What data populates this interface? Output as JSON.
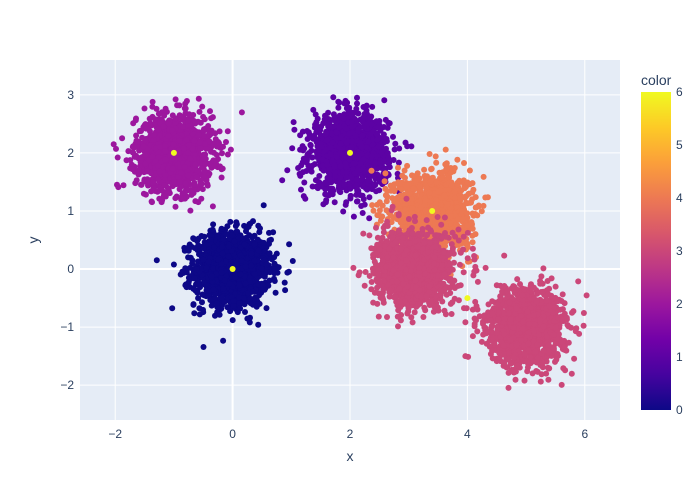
{
  "chart_data": {
    "type": "scatter",
    "xlabel": "x",
    "ylabel": "y",
    "xlim": [
      -2.6,
      6.6
    ],
    "ylim": [
      -2.6,
      3.6
    ],
    "x_ticks": [
      -2,
      0,
      2,
      4,
      6
    ],
    "y_ticks": [
      -2,
      -1,
      0,
      1,
      2,
      3
    ],
    "grid": true,
    "plot_background": "#e5ecf6",
    "colorbar": {
      "title": "color",
      "min": 0,
      "max": 6,
      "ticks": [
        0,
        1,
        2,
        3,
        4,
        5,
        6
      ],
      "colorscale": [
        "#0d0887",
        "#46039f",
        "#7201a8",
        "#9c179e",
        "#bd3786",
        "#d8576b",
        "#ed7953",
        "#fb9f3a",
        "#fdca26",
        "#f0f921"
      ]
    },
    "clusters": [
      {
        "center": [
          0,
          0
        ],
        "spread": 0.32,
        "color_value": 0
      },
      {
        "center": [
          -1,
          2
        ],
        "spread": 0.32,
        "color_value": 2
      },
      {
        "center": [
          2,
          2
        ],
        "spread": 0.32,
        "color_value": 1
      },
      {
        "center": [
          3.4,
          1
        ],
        "spread": 0.32,
        "color_value": 4
      },
      {
        "center": [
          3.1,
          0
        ],
        "spread": 0.32,
        "color_value": 3
      },
      {
        "center": [
          5,
          -1
        ],
        "spread": 0.32,
        "color_value": 3
      }
    ],
    "highlighted_points": [
      {
        "x": 0,
        "y": 0,
        "color_value": 6
      },
      {
        "x": -1,
        "y": 2,
        "color_value": 6
      },
      {
        "x": 2,
        "y": 2,
        "color_value": 6
      },
      {
        "x": 3.4,
        "y": 1,
        "color_value": 6
      },
      {
        "x": 4,
        "y": -0.5,
        "color_value": 6
      }
    ]
  }
}
